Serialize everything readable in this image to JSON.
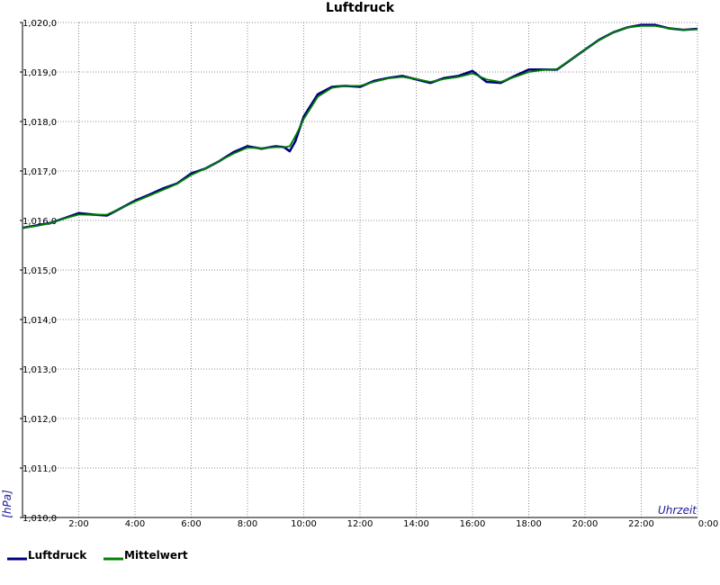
{
  "chart_data": {
    "type": "line",
    "title": "Luftdruck",
    "ylabel": "[hPa]",
    "xlabel": "Uhrzeit",
    "y_tick_labels": [
      "1,010,0",
      "1,011,0",
      "1,012,0",
      "1,013,0",
      "1,014,0",
      "1,015,0",
      "1,016,0",
      "1,017,0",
      "1,018,0",
      "1,019,0",
      "1,020,0"
    ],
    "x_tick_labels": [
      "2:00",
      "4:00",
      "6:00",
      "8:00",
      "10:00",
      "12:00",
      "14:00",
      "16:00",
      "18:00",
      "20:00",
      "22:00",
      "0:00"
    ],
    "xlim": [
      0,
      24
    ],
    "ylim": [
      1010.0,
      1020.0
    ],
    "x_unit": "hours",
    "grid": true,
    "legend": "bottom-left",
    "series": [
      {
        "name": "Luftdruck",
        "color": "#000080",
        "x": [
          0,
          0.5,
          1,
          1.5,
          2,
          2.5,
          3,
          3.5,
          4,
          4.5,
          5,
          5.5,
          6,
          6.5,
          7,
          7.5,
          8,
          8.5,
          9,
          9.3,
          9.5,
          9.7,
          10,
          10.5,
          11,
          11.5,
          12,
          12.5,
          13,
          13.5,
          14,
          14.5,
          15,
          15.5,
          16,
          16.5,
          17,
          17.5,
          18,
          18.5,
          19,
          19.5,
          20,
          20.5,
          21,
          21.5,
          22,
          22.5,
          23,
          23.5,
          24
        ],
        "y": [
          1015.85,
          1015.9,
          1015.95,
          1016.05,
          1016.15,
          1016.12,
          1016.1,
          1016.25,
          1016.4,
          1016.52,
          1016.65,
          1016.75,
          1016.95,
          1017.05,
          1017.2,
          1017.38,
          1017.5,
          1017.45,
          1017.5,
          1017.48,
          1017.4,
          1017.6,
          1018.1,
          1018.55,
          1018.7,
          1018.72,
          1018.7,
          1018.82,
          1018.88,
          1018.92,
          1018.85,
          1018.78,
          1018.88,
          1018.92,
          1019.02,
          1018.8,
          1018.78,
          1018.92,
          1019.05,
          1019.05,
          1019.05,
          1019.25,
          1019.45,
          1019.65,
          1019.8,
          1019.9,
          1019.95,
          1019.95,
          1019.88,
          1019.85,
          1019.87
        ]
      },
      {
        "name": "Mittelwert",
        "color": "#008000",
        "x": [
          0,
          0.5,
          1,
          1.5,
          2,
          2.5,
          3,
          3.5,
          4,
          4.5,
          5,
          5.5,
          6,
          6.5,
          7,
          7.5,
          8,
          8.5,
          9,
          9.3,
          9.5,
          9.7,
          10,
          10.5,
          11,
          11.5,
          12,
          12.5,
          13,
          13.5,
          14,
          14.5,
          15,
          15.5,
          16,
          16.5,
          17,
          17.5,
          18,
          18.5,
          19,
          19.5,
          20,
          20.5,
          21,
          21.5,
          22,
          22.5,
          23,
          23.5,
          24
        ],
        "y": [
          1015.85,
          1015.89,
          1015.95,
          1016.04,
          1016.12,
          1016.11,
          1016.12,
          1016.25,
          1016.38,
          1016.5,
          1016.62,
          1016.74,
          1016.92,
          1017.05,
          1017.2,
          1017.35,
          1017.47,
          1017.46,
          1017.48,
          1017.48,
          1017.5,
          1017.7,
          1018.05,
          1018.5,
          1018.68,
          1018.72,
          1018.72,
          1018.8,
          1018.87,
          1018.9,
          1018.86,
          1018.8,
          1018.86,
          1018.9,
          1018.97,
          1018.85,
          1018.8,
          1018.9,
          1019.0,
          1019.04,
          1019.06,
          1019.25,
          1019.45,
          1019.64,
          1019.8,
          1019.9,
          1019.93,
          1019.93,
          1019.88,
          1019.85,
          1019.86
        ]
      }
    ]
  },
  "legend": {
    "items": [
      {
        "label": "Luftdruck",
        "color": "#000080"
      },
      {
        "label": "Mittelwert",
        "color": "#008000"
      }
    ]
  }
}
